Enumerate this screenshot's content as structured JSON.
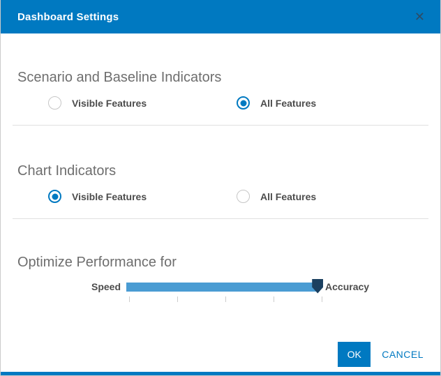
{
  "dialog": {
    "title": "Dashboard Settings",
    "close_icon_glyph": "✕"
  },
  "colors": {
    "primary": "#0079c1",
    "slider_track": "#4a9cd3",
    "slider_handle": "#1b4060",
    "heading_text": "#6e6e6e",
    "label_text": "#4c4c4c"
  },
  "sections": [
    {
      "heading": "Scenario and Baseline Indicators",
      "options": [
        {
          "label": "Visible Features",
          "selected": false
        },
        {
          "label": "All Features",
          "selected": true
        }
      ]
    },
    {
      "heading": "Chart Indicators",
      "options": [
        {
          "label": "Visible Features",
          "selected": true
        },
        {
          "label": "All Features",
          "selected": false
        }
      ]
    }
  ],
  "performance": {
    "heading": "Optimize Performance for",
    "min_label": "Speed",
    "max_label": "Accuracy",
    "tick_count": 5,
    "value_percent": 99
  },
  "footer": {
    "ok_label": "OK",
    "cancel_label": "CANCEL"
  }
}
